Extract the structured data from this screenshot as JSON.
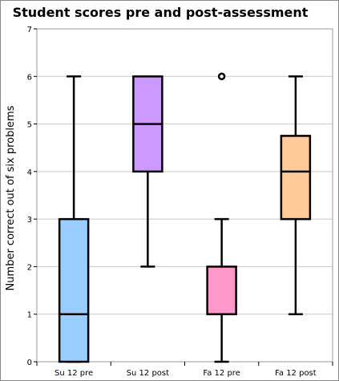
{
  "chart_data": {
    "type": "boxplot",
    "title": "Student scores pre and post-assessment",
    "xlabel": "",
    "ylabel": "Number correct out of six problems",
    "ylim": [
      0,
      7
    ],
    "yticks": [
      0,
      1,
      2,
      3,
      4,
      5,
      6,
      7
    ],
    "grid": true,
    "legend": "none",
    "categories": [
      "Su 12 pre",
      "Su 12 post",
      "Fa 12 pre",
      "Fa 12 post"
    ],
    "boxes": [
      {
        "category": "Su 12 pre",
        "whisker_low": 0,
        "q1": 0,
        "median": 1,
        "q3": 3,
        "whisker_high": 6,
        "outliers": [],
        "color": "#99ccff"
      },
      {
        "category": "Su 12 post",
        "whisker_low": 2,
        "q1": 4,
        "median": 5,
        "q3": 6,
        "whisker_high": 6,
        "outliers": [],
        "color": "#cc99ff"
      },
      {
        "category": "Fa 12 pre",
        "whisker_low": 0,
        "q1": 1,
        "median": 1,
        "q3": 2,
        "whisker_high": 3,
        "outliers": [
          6
        ],
        "color": "#ff99cc"
      },
      {
        "category": "Fa 12 post",
        "whisker_low": 1,
        "q1": 3,
        "median": 4,
        "q3": 4.75,
        "whisker_high": 6,
        "outliers": [],
        "color": "#ffcc99"
      }
    ]
  }
}
